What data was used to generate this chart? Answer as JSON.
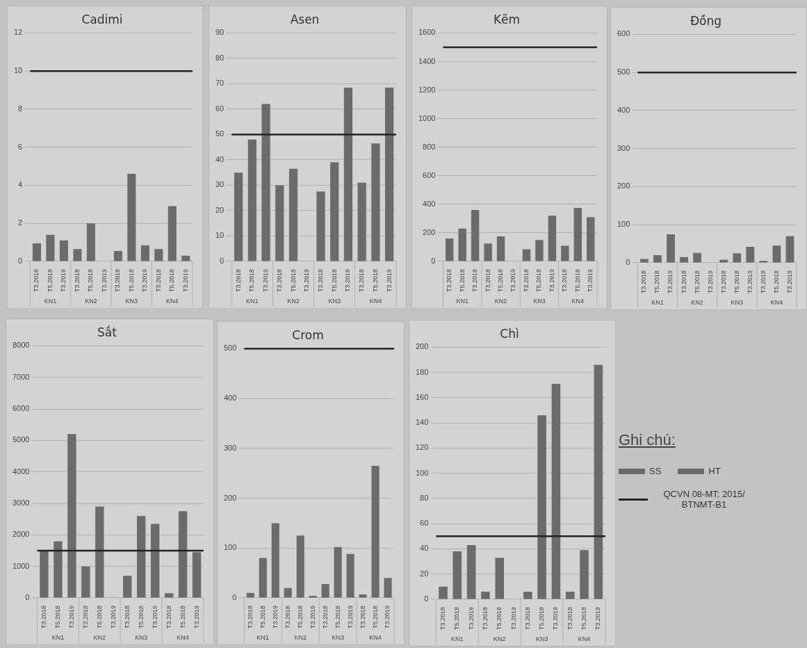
{
  "chart_data": [
    {
      "type": "bar",
      "title": "Cadimi",
      "categories": [
        "T3.2018",
        "T5.2018",
        "T3.2019",
        "T3.2018",
        "T5.2018",
        "T3.2019",
        "T3.2018",
        "T5.2018",
        "T3.2019",
        "T3.2018",
        "T5.2018",
        "T3.2019"
      ],
      "values": [
        0.95,
        1.4,
        1.1,
        0.65,
        2.0,
        null,
        0.55,
        4.6,
        0.85,
        0.65,
        2.9,
        0.3
      ],
      "color": "#6b6b6b",
      "ylim": [
        0,
        12
      ],
      "yticks": [
        0,
        2,
        4,
        6,
        8,
        10,
        12
      ],
      "grid": "y",
      "legend": false,
      "ref_lines": [
        {
          "axis": "y",
          "value": 10,
          "color": "#222222"
        }
      ],
      "annotations": [
        "KN1",
        "KN2",
        "KN3",
        "KN4"
      ]
    },
    {
      "type": "bar",
      "title": "Asen",
      "categories": [
        "T3.2018",
        "T5.2018",
        "T3.2019",
        "T3.2018",
        "T5.2018",
        "T3.2019",
        "T3.2018",
        "T5.2018",
        "T3.2019",
        "T3.2018",
        "T5.2018",
        "T3.2019"
      ],
      "values": [
        35,
        48,
        62,
        30,
        36.5,
        null,
        27.5,
        39,
        68.5,
        31,
        46.5,
        68.5
      ],
      "color": "#6b6b6b",
      "ylim": [
        0,
        90
      ],
      "yticks": [
        0,
        10,
        20,
        30,
        40,
        50,
        60,
        70,
        80,
        90
      ],
      "grid": "y",
      "legend": false,
      "ref_lines": [
        {
          "axis": "y",
          "value": 50,
          "color": "#222222"
        }
      ],
      "annotations": [
        "KN1",
        "KN2",
        "KN3",
        "KN4"
      ]
    },
    {
      "type": "bar",
      "title": "Kẽm",
      "categories": [
        "T3.2018",
        "T5.2018",
        "T3.2019",
        "T3.2018",
        "T5.2018",
        "T3.2019",
        "T3.2018",
        "T5.2018",
        "T3.2019",
        "T3.2018",
        "T5.2018",
        "T3.2019"
      ],
      "values": [
        160,
        230,
        360,
        125,
        175,
        null,
        85,
        150,
        320,
        110,
        375,
        310
      ],
      "color": "#6b6b6b",
      "ylim": [
        0,
        1600
      ],
      "yticks": [
        0,
        200,
        400,
        600,
        800,
        1000,
        1200,
        1400,
        1600
      ],
      "grid": "y",
      "legend": false,
      "ref_lines": [
        {
          "axis": "y",
          "value": 1500,
          "color": "#222222"
        }
      ],
      "annotations": [
        "KN1",
        "KN2",
        "KN3",
        "KN4"
      ]
    },
    {
      "type": "bar",
      "title": "Đồng",
      "categories": [
        "T3.2018",
        "T5.2018",
        "T3.2019",
        "T3.2018",
        "T5.2018",
        "T3.2019",
        "T3.2018",
        "T5.2018",
        "T3.2019",
        "T3.2018",
        "T5.2018",
        "T3.2019"
      ],
      "values": [
        10,
        20,
        75,
        15,
        26,
        null,
        8,
        25,
        42,
        5,
        45,
        70
      ],
      "color": "#6b6b6b",
      "ylim": [
        0,
        600
      ],
      "yticks": [
        0,
        100,
        200,
        300,
        400,
        500,
        600
      ],
      "grid": "y",
      "legend": false,
      "ref_lines": [
        {
          "axis": "y",
          "value": 500,
          "color": "#222222"
        }
      ],
      "annotations": [
        "KN1",
        "KN2",
        "KN3",
        "KN4"
      ]
    },
    {
      "type": "bar",
      "title": "Sắt",
      "categories": [
        "T3.2018",
        "T5.2018",
        "T3.2019",
        "T3.2018",
        "T5.2018",
        "T3.2019",
        "T3.2018",
        "T5.2018",
        "T3.2019",
        "T3.2018",
        "T5.2018",
        "T3.2019"
      ],
      "values": [
        1500,
        1800,
        5200,
        1000,
        2900,
        null,
        700,
        2600,
        2350,
        150,
        2750,
        1450
      ],
      "color": "#6b6b6b",
      "ylim": [
        0,
        8000
      ],
      "yticks": [
        0,
        1000,
        2000,
        3000,
        4000,
        5000,
        6000,
        7000,
        8000
      ],
      "grid": "y",
      "legend": false,
      "ref_lines": [
        {
          "axis": "y",
          "value": 1500,
          "color": "#222222"
        }
      ],
      "annotations": [
        "KN1",
        "KN2",
        "KN3",
        "KN4"
      ]
    },
    {
      "type": "bar",
      "title": "Crom",
      "categories": [
        "T3.2018",
        "T5.2018",
        "T3.2019",
        "T3.2018",
        "T5.2018",
        "T3.2019",
        "T3.2018",
        "T5.2018",
        "T3.2019",
        "T3.2018",
        "T5.2018",
        "T3.2019"
      ],
      "values": [
        10,
        80,
        150,
        20,
        125,
        4,
        28,
        102,
        88,
        7,
        265,
        40
      ],
      "color": "#6b6b6b",
      "ylim": [
        0,
        500
      ],
      "yticks": [
        0,
        100,
        200,
        300,
        400,
        500
      ],
      "grid": "y",
      "legend": false,
      "ref_lines": [
        {
          "axis": "y",
          "value": 500,
          "color": "#222222"
        }
      ],
      "annotations": [
        "KN1",
        "KN2",
        "KN3",
        "KN4"
      ]
    },
    {
      "type": "bar",
      "title": "Chì",
      "categories": [
        "T3.2018",
        "T5.2018",
        "T3.2019",
        "T3.2018",
        "T5.2018",
        "T3.2019",
        "T3.2018",
        "T5.2018",
        "T3.2019",
        "T3.2018",
        "T5.2018",
        "T3.2019"
      ],
      "values": [
        10,
        38,
        43,
        6,
        33,
        null,
        6,
        146,
        171,
        6,
        39,
        186
      ],
      "color": "#6b6b6b",
      "ylim": [
        0,
        200
      ],
      "yticks": [
        0,
        20,
        40,
        60,
        80,
        100,
        120,
        140,
        160,
        180,
        200
      ],
      "grid": "y",
      "legend": false,
      "ref_lines": [
        {
          "axis": "y",
          "value": 50,
          "color": "#222222"
        }
      ],
      "annotations": [
        "KN1",
        "KN2",
        "KN3",
        "KN4"
      ]
    },
    {
      "type": "other",
      "title": "Ghi chú:",
      "annotations": [
        "SS",
        "HT",
        "QCVN 08-MT: 2015/ BTNMT-B1"
      ]
    }
  ]
}
